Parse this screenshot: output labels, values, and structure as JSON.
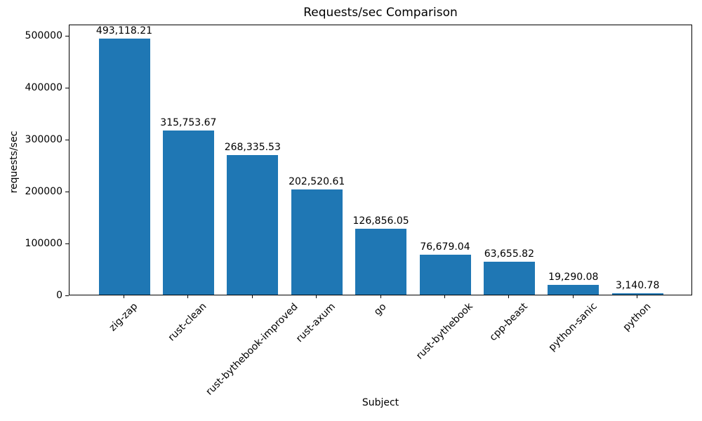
{
  "chart_data": {
    "type": "bar",
    "title": "Requests/sec Comparison",
    "xlabel": "Subject",
    "ylabel": "requests/sec",
    "categories": [
      "zig-zap",
      "rust-clean",
      "rust-bythebook-improved",
      "rust-axum",
      "go",
      "rust-bythebook",
      "cpp-beast",
      "python-sanic",
      "python"
    ],
    "values": [
      493118.21,
      315753.67,
      268335.53,
      202520.61,
      126856.05,
      76679.04,
      63655.82,
      19290.08,
      3140.78
    ],
    "value_labels": [
      "493,118.21",
      "315,753.67",
      "268,335.53",
      "202,520.61",
      "126,856.05",
      "76,679.04",
      "63,655.82",
      "19,290.08",
      "3,140.78"
    ],
    "ylim": [
      0,
      500000
    ],
    "yticks": [
      0,
      100000,
      200000,
      300000,
      400000,
      500000
    ],
    "ytick_labels": [
      "0",
      "100000",
      "200000",
      "300000",
      "400000",
      "500000"
    ],
    "bar_color": "#1f77b4",
    "grid": false,
    "legend": null
  }
}
